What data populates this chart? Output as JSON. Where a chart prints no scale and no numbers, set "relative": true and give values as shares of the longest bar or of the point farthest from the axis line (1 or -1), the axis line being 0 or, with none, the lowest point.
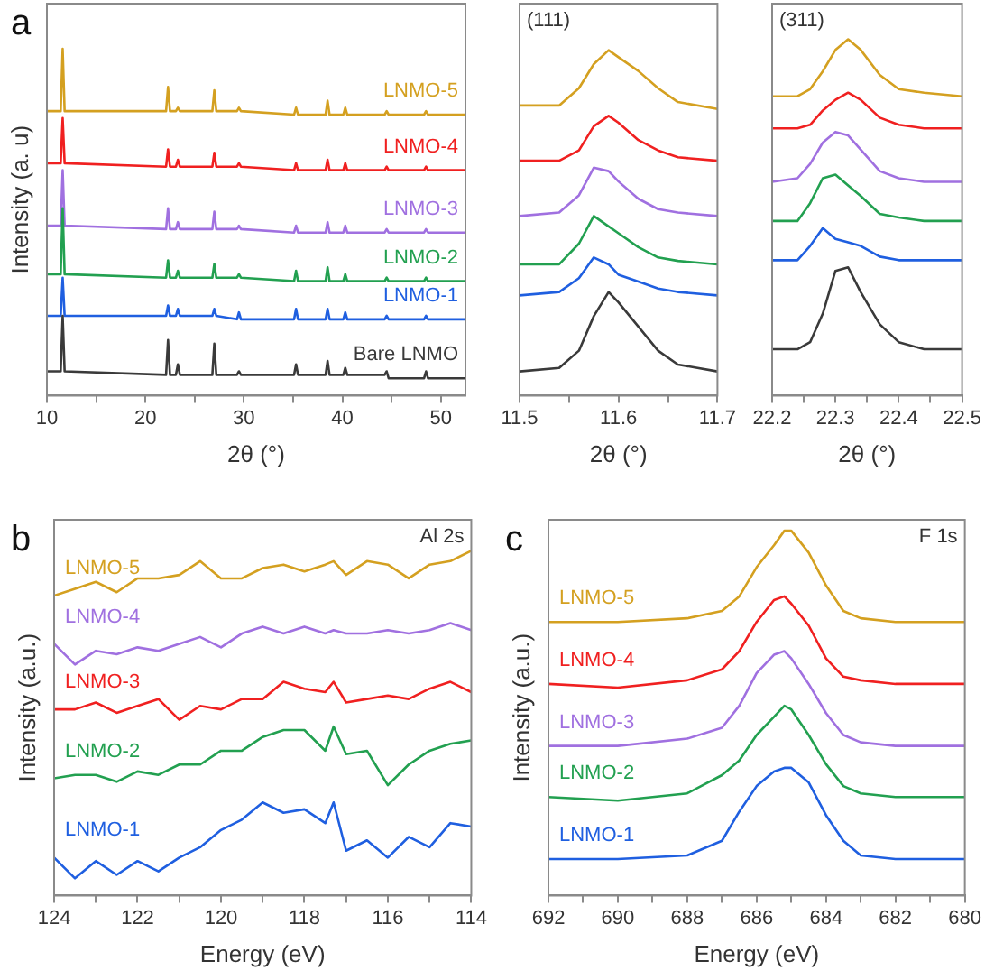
{
  "chart_data": [
    {
      "type": "line",
      "title": "a",
      "xlabel": "2θ (°)",
      "ylabel": "Intensity (a. u)",
      "relative": true,
      "grid": false,
      "legend": false,
      "marker": "none",
      "line_style": "solid",
      "xlim": [
        10,
        52.5
      ],
      "xticks": [
        10,
        {
          "value": 15,
          "label": null
        },
        20,
        {
          "value": 25,
          "label": null
        },
        30,
        {
          "value": 35,
          "label": null
        },
        40,
        {
          "value": 45,
          "label": null
        },
        50
      ],
      "x": [
        10,
        11.4,
        11.6,
        11.8,
        22.1,
        22.3,
        22.5,
        23.1,
        23.3,
        23.5,
        26.8,
        27,
        27.2,
        29.3,
        29.5,
        29.7,
        35.1,
        35.3,
        35.5,
        38.3,
        38.5,
        38.7,
        40.1,
        40.3,
        40.5,
        44.3,
        44.5,
        44.7,
        48.3,
        48.5,
        48.7,
        52.5
      ],
      "series": [
        {
          "name": "Bare LNMO",
          "color": "#3a3a3a",
          "values": [
            0.07,
            0.07,
            0.23,
            0.07,
            0.06,
            0.16,
            0.06,
            0.06,
            0.09,
            0.06,
            0.06,
            0.15,
            0.06,
            0.06,
            0.07,
            0.06,
            0.06,
            0.09,
            0.06,
            0.06,
            0.1,
            0.06,
            0.06,
            0.08,
            0.06,
            0.06,
            0.07,
            0.05,
            0.05,
            0.07,
            0.05,
            0.05
          ]
        },
        {
          "name": "LNMO-1",
          "color": "#1f5fe0",
          "values": [
            0.23,
            0.23,
            0.34,
            0.23,
            0.23,
            0.26,
            0.23,
            0.23,
            0.25,
            0.23,
            0.23,
            0.25,
            0.23,
            0.22,
            0.24,
            0.22,
            0.22,
            0.25,
            0.22,
            0.22,
            0.25,
            0.22,
            0.22,
            0.24,
            0.22,
            0.22,
            0.23,
            0.22,
            0.22,
            0.23,
            0.22,
            0.22
          ]
        },
        {
          "name": "LNMO-2",
          "color": "#22a050",
          "values": [
            0.35,
            0.35,
            0.54,
            0.35,
            0.34,
            0.39,
            0.34,
            0.34,
            0.36,
            0.34,
            0.34,
            0.38,
            0.34,
            0.34,
            0.35,
            0.34,
            0.33,
            0.36,
            0.33,
            0.33,
            0.37,
            0.33,
            0.33,
            0.35,
            0.33,
            0.33,
            0.34,
            0.33,
            0.33,
            0.34,
            0.33,
            0.33
          ]
        },
        {
          "name": "LNMO-3",
          "color": "#a070e0",
          "values": [
            0.49,
            0.49,
            0.65,
            0.49,
            0.48,
            0.54,
            0.48,
            0.48,
            0.5,
            0.48,
            0.48,
            0.53,
            0.48,
            0.48,
            0.49,
            0.48,
            0.47,
            0.49,
            0.47,
            0.47,
            0.5,
            0.47,
            0.47,
            0.49,
            0.47,
            0.47,
            0.48,
            0.47,
            0.47,
            0.48,
            0.47,
            0.47
          ]
        },
        {
          "name": "LNMO-4",
          "color": "#f02020",
          "values": [
            0.67,
            0.67,
            0.8,
            0.67,
            0.66,
            0.71,
            0.66,
            0.66,
            0.68,
            0.66,
            0.66,
            0.7,
            0.66,
            0.66,
            0.67,
            0.66,
            0.65,
            0.67,
            0.65,
            0.65,
            0.68,
            0.65,
            0.65,
            0.67,
            0.65,
            0.65,
            0.66,
            0.65,
            0.65,
            0.66,
            0.65,
            0.65
          ]
        },
        {
          "name": "LNMO-5",
          "color": "#d4a020",
          "values": [
            0.82,
            0.82,
            1.0,
            0.82,
            0.82,
            0.89,
            0.82,
            0.82,
            0.83,
            0.82,
            0.82,
            0.88,
            0.82,
            0.82,
            0.83,
            0.82,
            0.81,
            0.83,
            0.81,
            0.81,
            0.85,
            0.81,
            0.81,
            0.83,
            0.81,
            0.81,
            0.82,
            0.81,
            0.81,
            0.82,
            0.81,
            0.81
          ]
        }
      ]
    },
    {
      "type": "line",
      "xlabel": "2θ (°)",
      "annotations": [
        "(111)"
      ],
      "relative": true,
      "grid": false,
      "legend": false,
      "marker": "none",
      "line_style": "solid",
      "xlim": [
        11.5,
        11.7
      ],
      "xticks": [
        11.5,
        {
          "value": 11.55,
          "label": null
        },
        11.6,
        {
          "value": 11.65,
          "label": null
        },
        11.7
      ],
      "x": [
        11.5,
        11.54,
        11.56,
        11.575,
        11.59,
        11.6,
        11.62,
        11.64,
        11.66,
        11.7
      ],
      "series": [
        {
          "color": "#3a3a3a",
          "values": [
            0.07,
            0.08,
            0.13,
            0.23,
            0.3,
            0.27,
            0.2,
            0.13,
            0.09,
            0.07
          ]
        },
        {
          "color": "#1f5fe0",
          "values": [
            0.29,
            0.3,
            0.34,
            0.4,
            0.38,
            0.35,
            0.33,
            0.31,
            0.3,
            0.29
          ]
        },
        {
          "color": "#22a050",
          "values": [
            0.38,
            0.38,
            0.44,
            0.52,
            0.49,
            0.47,
            0.43,
            0.4,
            0.39,
            0.38
          ]
        },
        {
          "color": "#a070e0",
          "values": [
            0.52,
            0.53,
            0.58,
            0.66,
            0.65,
            0.62,
            0.57,
            0.54,
            0.53,
            0.52
          ]
        },
        {
          "color": "#f02020",
          "values": [
            0.68,
            0.68,
            0.71,
            0.78,
            0.81,
            0.79,
            0.74,
            0.71,
            0.69,
            0.68
          ]
        },
        {
          "color": "#d4a020",
          "values": [
            0.84,
            0.84,
            0.89,
            0.96,
            1.0,
            0.98,
            0.94,
            0.89,
            0.85,
            0.83
          ]
        }
      ]
    },
    {
      "type": "line",
      "xlabel": "2θ (°)",
      "annotations": [
        "(311)"
      ],
      "relative": true,
      "grid": false,
      "legend": false,
      "marker": "none",
      "line_style": "solid",
      "xlim": [
        22.2,
        22.5
      ],
      "xticks": [
        22.2,
        {
          "value": 22.25,
          "label": null
        },
        22.3,
        {
          "value": 22.35,
          "label": null
        },
        22.4,
        {
          "value": 22.45,
          "label": null
        },
        22.5
      ],
      "x": [
        22.2,
        22.24,
        22.26,
        22.28,
        22.3,
        22.32,
        22.34,
        22.37,
        22.4,
        22.44,
        22.5
      ],
      "series": [
        {
          "color": "#3a3a3a",
          "values": [
            0.13,
            0.13,
            0.15,
            0.23,
            0.35,
            0.36,
            0.29,
            0.2,
            0.15,
            0.13,
            0.13
          ]
        },
        {
          "color": "#1f5fe0",
          "values": [
            0.38,
            0.38,
            0.42,
            0.47,
            0.44,
            0.43,
            0.42,
            0.39,
            0.38,
            0.38,
            0.38
          ]
        },
        {
          "color": "#22a050",
          "values": [
            0.49,
            0.49,
            0.54,
            0.61,
            0.62,
            0.59,
            0.56,
            0.51,
            0.5,
            0.49,
            0.49
          ]
        },
        {
          "color": "#a070e0",
          "values": [
            0.6,
            0.61,
            0.65,
            0.71,
            0.74,
            0.73,
            0.69,
            0.63,
            0.61,
            0.6,
            0.6
          ]
        },
        {
          "color": "#f02020",
          "values": [
            0.75,
            0.75,
            0.76,
            0.8,
            0.83,
            0.85,
            0.83,
            0.78,
            0.76,
            0.75,
            0.75
          ]
        },
        {
          "color": "#d4a020",
          "values": [
            0.84,
            0.84,
            0.86,
            0.91,
            0.97,
            1.0,
            0.97,
            0.9,
            0.86,
            0.85,
            0.84
          ]
        }
      ]
    },
    {
      "type": "line",
      "title": "b",
      "xlabel": "Energy (eV)",
      "ylabel": "Intensity (a.u.)",
      "annotations": [
        "Al 2s"
      ],
      "relative": true,
      "grid": false,
      "legend": false,
      "marker": "none",
      "line_style": "solid",
      "xlim": [
        124,
        114
      ],
      "xticks": [
        124,
        {
          "value": 123,
          "label": null
        },
        122,
        {
          "value": 121,
          "label": null
        },
        120,
        {
          "value": 119,
          "label": null
        },
        118,
        {
          "value": 117,
          "label": null
        },
        116,
        {
          "value": 115,
          "label": null
        },
        114
      ],
      "x": [
        124,
        123.5,
        123,
        122.5,
        122,
        121.5,
        121,
        120.5,
        120,
        119.5,
        119,
        118.5,
        118,
        117.5,
        117.3,
        117,
        116.5,
        116,
        115.5,
        115,
        114.5,
        114
      ],
      "series": [
        {
          "name": "LNMO-1",
          "color": "#1f5fe0",
          "values": [
            0.11,
            0.05,
            0.1,
            0.06,
            0.1,
            0.07,
            0.11,
            0.14,
            0.19,
            0.22,
            0.27,
            0.24,
            0.25,
            0.21,
            0.27,
            0.13,
            0.16,
            0.11,
            0.17,
            0.14,
            0.21,
            0.2
          ]
        },
        {
          "name": "LNMO-2",
          "color": "#22a050",
          "values": [
            0.34,
            0.35,
            0.35,
            0.33,
            0.36,
            0.35,
            0.38,
            0.38,
            0.42,
            0.42,
            0.46,
            0.48,
            0.48,
            0.42,
            0.49,
            0.41,
            0.42,
            0.32,
            0.38,
            0.42,
            0.44,
            0.45
          ]
        },
        {
          "name": "LNMO-3",
          "color": "#f02020",
          "values": [
            0.54,
            0.54,
            0.56,
            0.53,
            0.55,
            0.57,
            0.51,
            0.55,
            0.54,
            0.57,
            0.57,
            0.62,
            0.6,
            0.59,
            0.62,
            0.56,
            0.57,
            0.58,
            0.57,
            0.6,
            0.62,
            0.59
          ]
        },
        {
          "name": "LNMO-4",
          "color": "#a070e0",
          "values": [
            0.73,
            0.67,
            0.71,
            0.7,
            0.72,
            0.71,
            0.73,
            0.75,
            0.72,
            0.76,
            0.78,
            0.76,
            0.78,
            0.76,
            0.77,
            0.76,
            0.76,
            0.77,
            0.76,
            0.77,
            0.79,
            0.77
          ]
        },
        {
          "name": "LNMO-5",
          "color": "#d4a020",
          "values": [
            0.87,
            0.89,
            0.91,
            0.88,
            0.92,
            0.92,
            0.93,
            0.97,
            0.92,
            0.92,
            0.95,
            0.96,
            0.94,
            0.96,
            0.97,
            0.93,
            0.97,
            0.96,
            0.92,
            0.96,
            0.97,
            1.0
          ]
        }
      ]
    },
    {
      "type": "line",
      "title": "c",
      "xlabel": "Energy (eV)",
      "ylabel": "Intensity (a.u.)",
      "annotations": [
        "F 1s"
      ],
      "relative": true,
      "grid": false,
      "legend": false,
      "marker": "none",
      "line_style": "solid",
      "xlim": [
        692,
        680
      ],
      "xticks": [
        692,
        {
          "value": 691,
          "label": null
        },
        690,
        {
          "value": 689,
          "label": null
        },
        688,
        {
          "value": 687,
          "label": null
        },
        686,
        {
          "value": 685,
          "label": null
        },
        684,
        {
          "value": 683,
          "label": null
        },
        682,
        {
          "value": 681,
          "label": null
        },
        680
      ],
      "x": [
        692,
        690,
        688,
        687,
        686.5,
        686,
        685.5,
        685.2,
        685,
        684.5,
        684,
        683.5,
        683,
        682,
        680
      ],
      "series": [
        {
          "name": "LNMO-1",
          "color": "#1f5fe0",
          "values": [
            0.1,
            0.1,
            0.11,
            0.15,
            0.23,
            0.3,
            0.34,
            0.35,
            0.35,
            0.31,
            0.22,
            0.15,
            0.11,
            0.1,
            0.1
          ]
        },
        {
          "name": "LNMO-2",
          "color": "#22a050",
          "values": [
            0.27,
            0.26,
            0.28,
            0.33,
            0.37,
            0.44,
            0.49,
            0.52,
            0.51,
            0.44,
            0.36,
            0.3,
            0.28,
            0.27,
            0.27
          ]
        },
        {
          "name": "LNMO-3",
          "color": "#a070e0",
          "values": [
            0.41,
            0.41,
            0.43,
            0.46,
            0.52,
            0.61,
            0.66,
            0.67,
            0.65,
            0.58,
            0.5,
            0.44,
            0.42,
            0.41,
            0.41
          ]
        },
        {
          "name": "LNMO-4",
          "color": "#f02020",
          "values": [
            0.58,
            0.57,
            0.59,
            0.62,
            0.67,
            0.75,
            0.81,
            0.82,
            0.8,
            0.74,
            0.65,
            0.6,
            0.59,
            0.58,
            0.58
          ]
        },
        {
          "name": "LNMO-5",
          "color": "#d4a020",
          "values": [
            0.75,
            0.75,
            0.76,
            0.78,
            0.82,
            0.9,
            0.96,
            1.0,
            1.0,
            0.94,
            0.85,
            0.78,
            0.76,
            0.75,
            0.75
          ]
        }
      ]
    }
  ]
}
